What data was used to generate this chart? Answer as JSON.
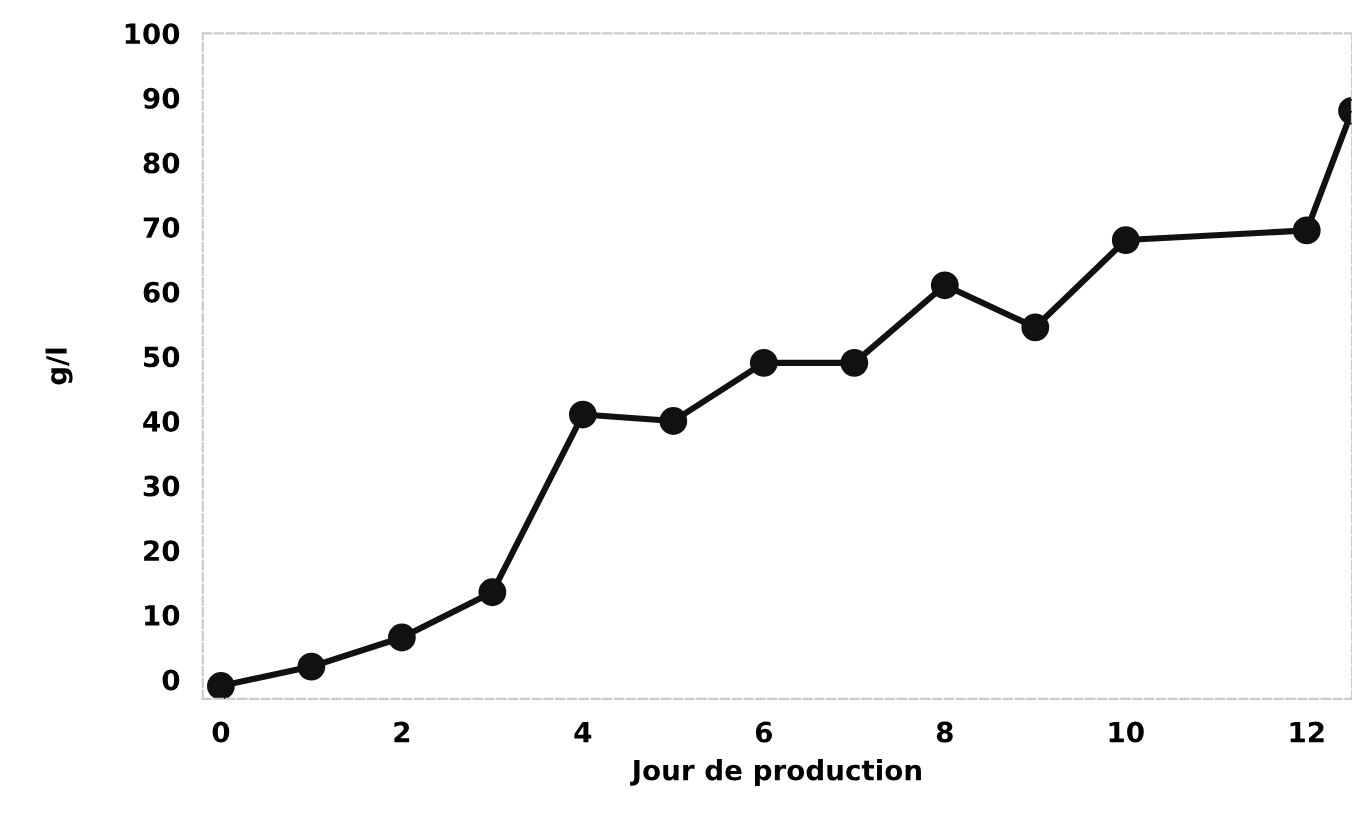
{
  "chart_data": {
    "type": "line",
    "xlabel": "Jour de production",
    "ylabel": "g/l",
    "x": [
      0,
      1,
      2,
      3,
      4,
      5,
      6,
      7,
      8,
      9,
      10,
      12,
      12.5
    ],
    "series": [
      {
        "color": "#111111",
        "values": [
          -1,
          2,
          6.5,
          13.5,
          41,
          40,
          49,
          49,
          61,
          54.5,
          68,
          69.5,
          88
        ]
      }
    ],
    "xlim": [
      -0.2,
      12.5
    ],
    "xticks": [
      0,
      2,
      4,
      6,
      8,
      10,
      12
    ],
    "ylim": [
      -3,
      100
    ],
    "yticks": [
      0,
      10,
      20,
      30,
      40,
      50,
      60,
      70,
      80,
      90,
      100
    ],
    "marker": "circle",
    "line_style": "solid",
    "grid": false,
    "legend": false
  }
}
